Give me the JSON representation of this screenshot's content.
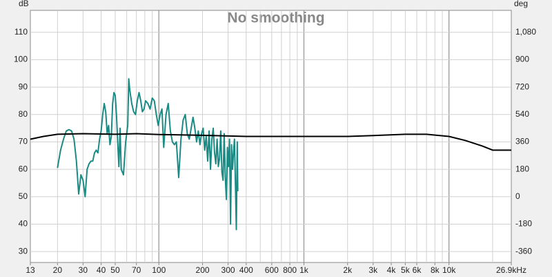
{
  "chart_data": {
    "type": "line",
    "title": "No smoothing",
    "ylabel": "dB",
    "y2label": "deg",
    "xscale": "log",
    "xlim": [
      13,
      26900
    ],
    "xticks": [
      13,
      20,
      30,
      40,
      50,
      70,
      100,
      200,
      300,
      400,
      600,
      800,
      {
        "value": 1000,
        "label": "1k"
      },
      {
        "value": 2000,
        "label": "2k"
      },
      {
        "value": 3000,
        "label": "3k"
      },
      {
        "value": 4000,
        "label": "4k"
      },
      {
        "value": 5000,
        "label": "5k"
      },
      {
        "value": 6000,
        "label": "6k"
      },
      {
        "value": 8000,
        "label": "8k"
      },
      {
        "value": 10000,
        "label": "10k"
      },
      {
        "value": 26900,
        "label": "26.9kHz"
      }
    ],
    "x_grid": [
      20,
      30,
      40,
      50,
      60,
      70,
      80,
      90,
      100,
      200,
      300,
      400,
      500,
      600,
      700,
      800,
      900,
      1000,
      2000,
      3000,
      4000,
      5000,
      6000,
      7000,
      8000,
      9000,
      10000,
      20000
    ],
    "ylim": [
      26,
      118
    ],
    "yticks": [
      30,
      40,
      50,
      60,
      70,
      80,
      90,
      100,
      110
    ],
    "y2lim": [
      -432,
      1224
    ],
    "y2ticks": [
      -360,
      -180,
      0,
      180,
      360,
      540,
      720,
      900,
      {
        "value": 1080,
        "label": "1,080"
      }
    ],
    "grid": true,
    "series": [
      {
        "color": "#1a8a84",
        "x": [
          20,
          21,
          22,
          23,
          24,
          25,
          26,
          27,
          28,
          29,
          30,
          31,
          32,
          33,
          34,
          35,
          36,
          37,
          38,
          39,
          40,
          41,
          42,
          43,
          44,
          45,
          46,
          47,
          48,
          49,
          50,
          51,
          52,
          53,
          54,
          55,
          57,
          59,
          61,
          62,
          63,
          65,
          67,
          69,
          71,
          73,
          75,
          77,
          79,
          81,
          84,
          87,
          90,
          93,
          96,
          99,
          102,
          105,
          108,
          112,
          116,
          120,
          124,
          128,
          132,
          137,
          142,
          147,
          152,
          157,
          162,
          167,
          172,
          177,
          182,
          187,
          192,
          197,
          202,
          207,
          212,
          217,
          222,
          227,
          232,
          237,
          242,
          247,
          252,
          257,
          262,
          267,
          272,
          277,
          282,
          287,
          292,
          297,
          302,
          307,
          312,
          317,
          322,
          327,
          332,
          337,
          342,
          347,
          350
        ],
        "values": [
          60.5,
          67,
          71,
          74,
          74.5,
          74,
          71,
          63,
          51,
          58,
          56,
          50,
          60,
          62,
          63,
          63,
          66,
          67,
          66,
          71,
          74,
          80,
          84,
          81,
          73,
          76,
          69,
          72,
          84,
          88,
          87,
          80,
          70,
          61,
          75,
          60,
          58,
          70,
          76,
          93,
          89,
          84,
          81,
          80,
          85,
          88,
          85,
          81,
          82,
          85,
          84,
          82,
          86,
          85,
          80,
          76,
          80,
          82,
          68,
          80,
          84,
          74,
          70,
          69,
          70,
          57,
          71,
          78,
          80,
          73,
          71,
          75,
          79,
          75,
          70,
          74,
          69,
          73,
          75,
          67,
          72,
          63,
          74,
          60,
          71,
          75,
          66,
          62,
          71,
          61,
          64,
          74,
          59,
          56,
          73,
          57,
          49,
          68,
          61,
          71,
          40,
          69,
          60,
          66,
          71,
          55,
          38,
          70,
          52
        ]
      },
      {
        "color": "#000000",
        "x": [
          13,
          16,
          20,
          30,
          50,
          70,
          100,
          200,
          400,
          1000,
          2000,
          3000,
          5000,
          7000,
          10000,
          13000,
          17000,
          20000,
          26900
        ],
        "values": [
          71,
          72,
          72.8,
          73,
          72.8,
          73,
          72.7,
          72.4,
          72,
          72,
          72,
          72.3,
          72.8,
          72.8,
          72,
          70.5,
          68.5,
          67,
          67
        ]
      }
    ]
  }
}
